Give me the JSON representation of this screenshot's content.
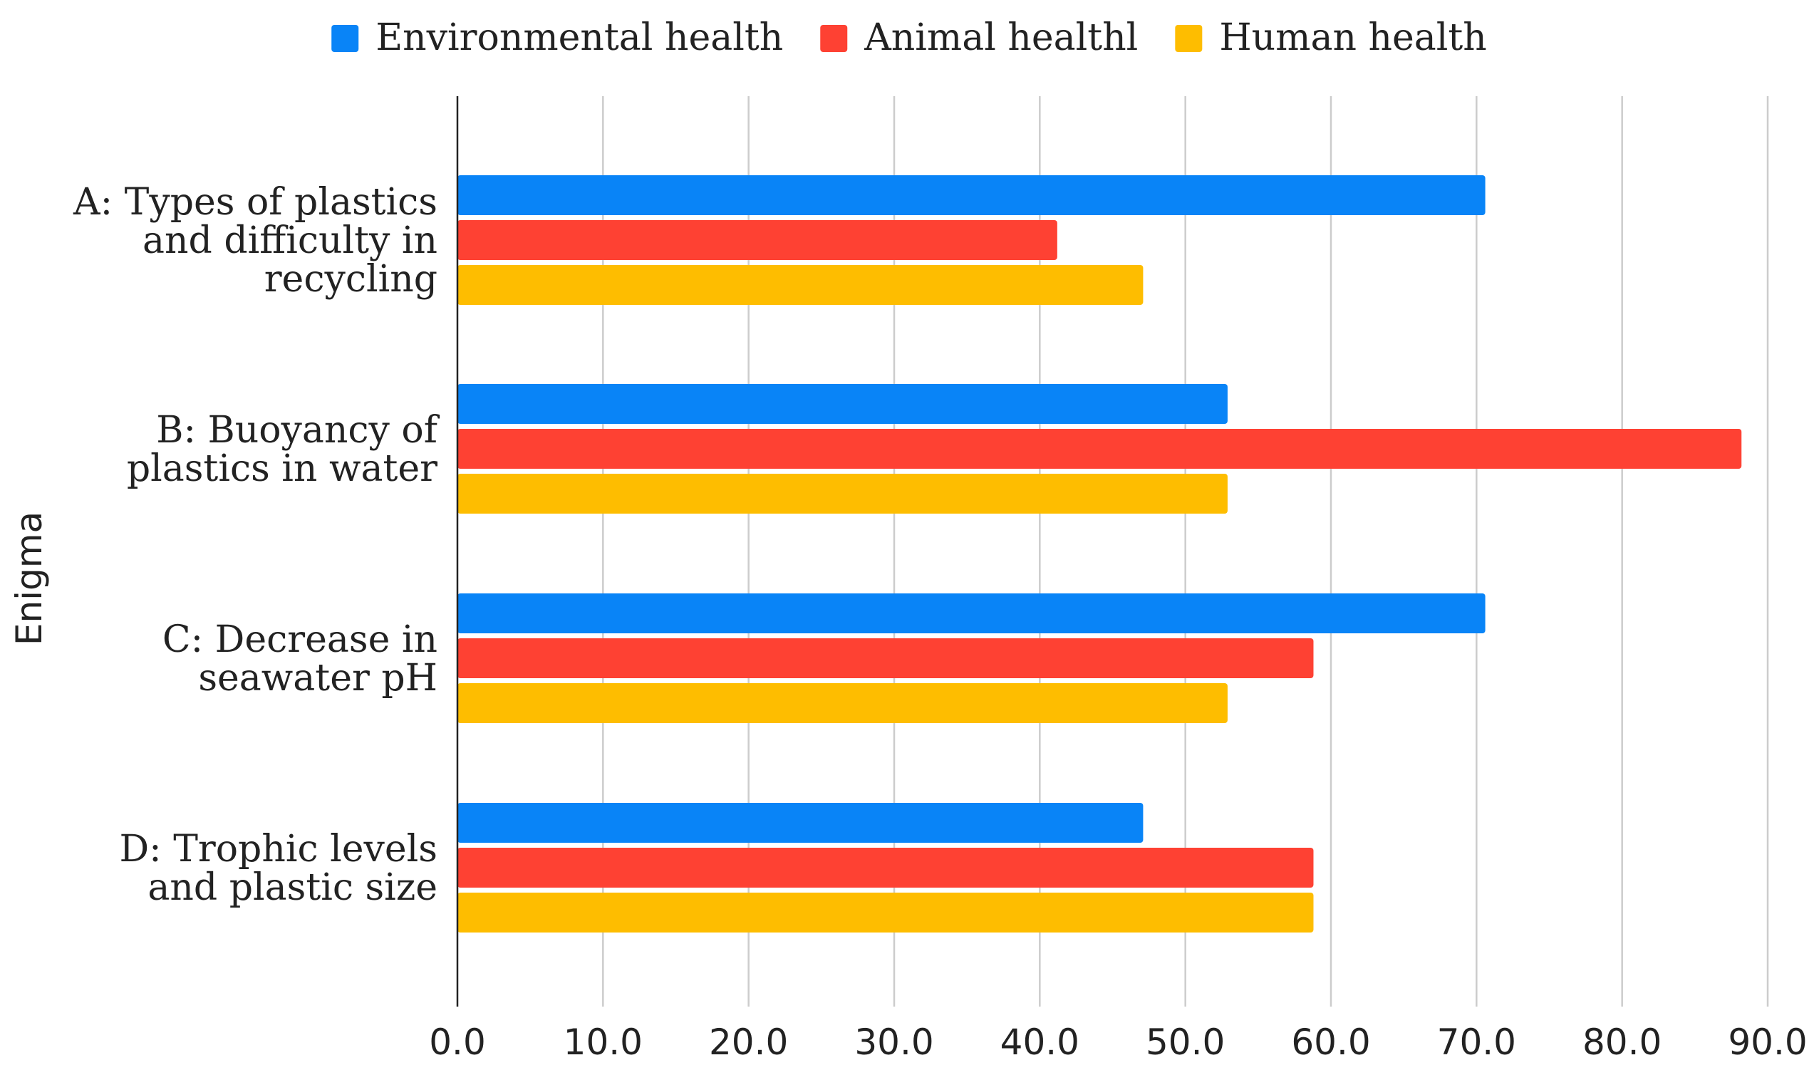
{
  "chart_data": {
    "type": "bar",
    "orientation": "horizontal",
    "title": "",
    "xlabel": "",
    "ylabel": "Enigma",
    "xlim": [
      0,
      90
    ],
    "x_ticks": [
      "0.0",
      "10.0",
      "20.0",
      "30.0",
      "40.0",
      "50.0",
      "60.0",
      "70.0",
      "80.0",
      "90.0"
    ],
    "grid": true,
    "legend_position": "top",
    "categories": [
      "A: Types of plastics and difficulty in recycling",
      "B: Buoyancy of plastics in water",
      "C: Decrease in seawater pH",
      "D: Trophic levels and plastic size"
    ],
    "category_lines": [
      [
        "A: Types of plastics",
        "and difficulty in",
        "recycling"
      ],
      [
        "B: Buoyancy of",
        "plastics in water"
      ],
      [
        "C: Decrease in",
        "seawater pH"
      ],
      [
        "D: Trophic levels",
        "and plastic size"
      ]
    ],
    "series": [
      {
        "name": "Environmental health",
        "color": "#0984f7",
        "values": [
          70.6,
          52.9,
          70.6,
          47.1
        ]
      },
      {
        "name": "Animal healthl",
        "color": "#fe4133",
        "values": [
          41.2,
          88.2,
          58.8,
          58.8
        ]
      },
      {
        "name": "Human health",
        "color": "#febd00",
        "values": [
          47.1,
          52.9,
          52.9,
          58.8
        ]
      }
    ]
  }
}
